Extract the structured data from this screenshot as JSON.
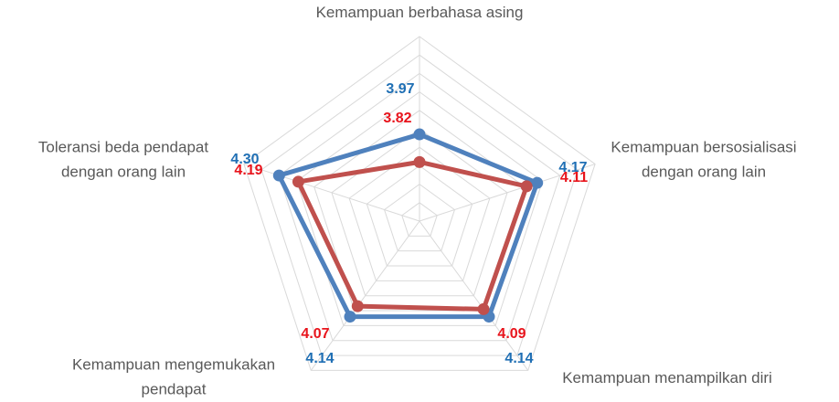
{
  "chart_data": {
    "type": "radar",
    "categories": [
      "Kemampuan berbahasa asing",
      "Kemampuan bersosialisasi\ndengan orang lain",
      "Kemampuan menampilkan diri",
      "Kemampuan mengemukakan\npendapat",
      "Toleransi beda pendapat\ndengan orang lain"
    ],
    "rlim": [
      3.5,
      4.5
    ],
    "rticks": [
      3.5,
      3.6,
      3.7,
      3.8,
      3.9,
      4.0,
      4.1,
      4.2,
      4.3,
      4.4,
      4.5
    ],
    "grid": true,
    "series": [
      {
        "color": "#4f81bd",
        "label_color": "#1f6fb4",
        "values": [
          3.97,
          4.17,
          4.14,
          4.14,
          4.3
        ],
        "value_labels": [
          "3.97",
          "4.17",
          "4.14",
          "4.14",
          "4.30"
        ]
      },
      {
        "color": "#c0504d",
        "label_color": "#e8141c",
        "values": [
          3.82,
          4.11,
          4.09,
          4.07,
          4.19
        ],
        "value_labels": [
          "3.82",
          "4.11",
          "4.09",
          "4.07",
          "4.19"
        ]
      }
    ]
  }
}
